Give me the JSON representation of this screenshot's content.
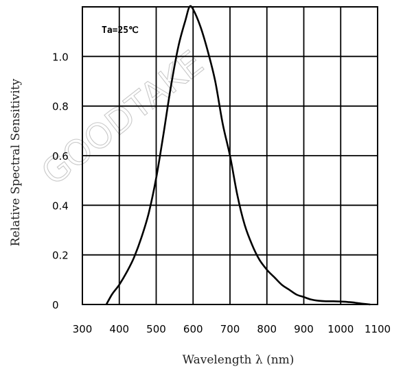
{
  "chart_data": {
    "type": "line",
    "xlabel": "Wavelength λ (nm)",
    "ylabel": "Relative Spectral Sensitivity",
    "annotation": "Ta=25℃",
    "watermark": "GOODTAKE",
    "xlim": [
      300,
      1100
    ],
    "ylim": [
      0,
      1.2
    ],
    "grid": true,
    "x_ticks": [
      {
        "value": 300,
        "label": "300"
      },
      {
        "value": 400,
        "label": "400"
      },
      {
        "value": 500,
        "label": "500"
      },
      {
        "value": 600,
        "label": "600"
      },
      {
        "value": 700,
        "label": "700"
      },
      {
        "value": 800,
        "label": "800"
      },
      {
        "value": 900,
        "label": "900"
      },
      {
        "value": 1000,
        "label": "1000"
      },
      {
        "value": 1100,
        "label": "1100"
      }
    ],
    "y_ticks": [
      {
        "value": 0,
        "label": "0"
      },
      {
        "value": 0.2,
        "label": "0.2"
      },
      {
        "value": 0.4,
        "label": "0.4"
      },
      {
        "value": 0.6,
        "label": "0.6"
      },
      {
        "value": 0.8,
        "label": "0.8"
      },
      {
        "value": 1.0,
        "label": "1.0"
      }
    ],
    "series": [
      {
        "x": [
          365,
          380,
          400,
          420,
          440,
          460,
          480,
          500,
          520,
          540,
          560,
          580,
          590,
          600,
          620,
          640,
          660,
          680,
          700,
          720,
          740,
          760,
          780,
          800,
          820,
          840,
          860,
          880,
          900,
          920,
          940,
          960,
          980,
          1000,
          1020,
          1040,
          1060,
          1080
        ],
        "y": [
          0,
          0.04,
          0.08,
          0.13,
          0.19,
          0.27,
          0.37,
          0.51,
          0.69,
          0.88,
          1.04,
          1.15,
          1.2,
          1.19,
          1.12,
          1.02,
          0.9,
          0.73,
          0.6,
          0.44,
          0.32,
          0.24,
          0.18,
          0.14,
          0.11,
          0.08,
          0.06,
          0.04,
          0.03,
          0.02,
          0.015,
          0.013,
          0.013,
          0.012,
          0.01,
          0.007,
          0.003,
          0
        ]
      }
    ]
  }
}
